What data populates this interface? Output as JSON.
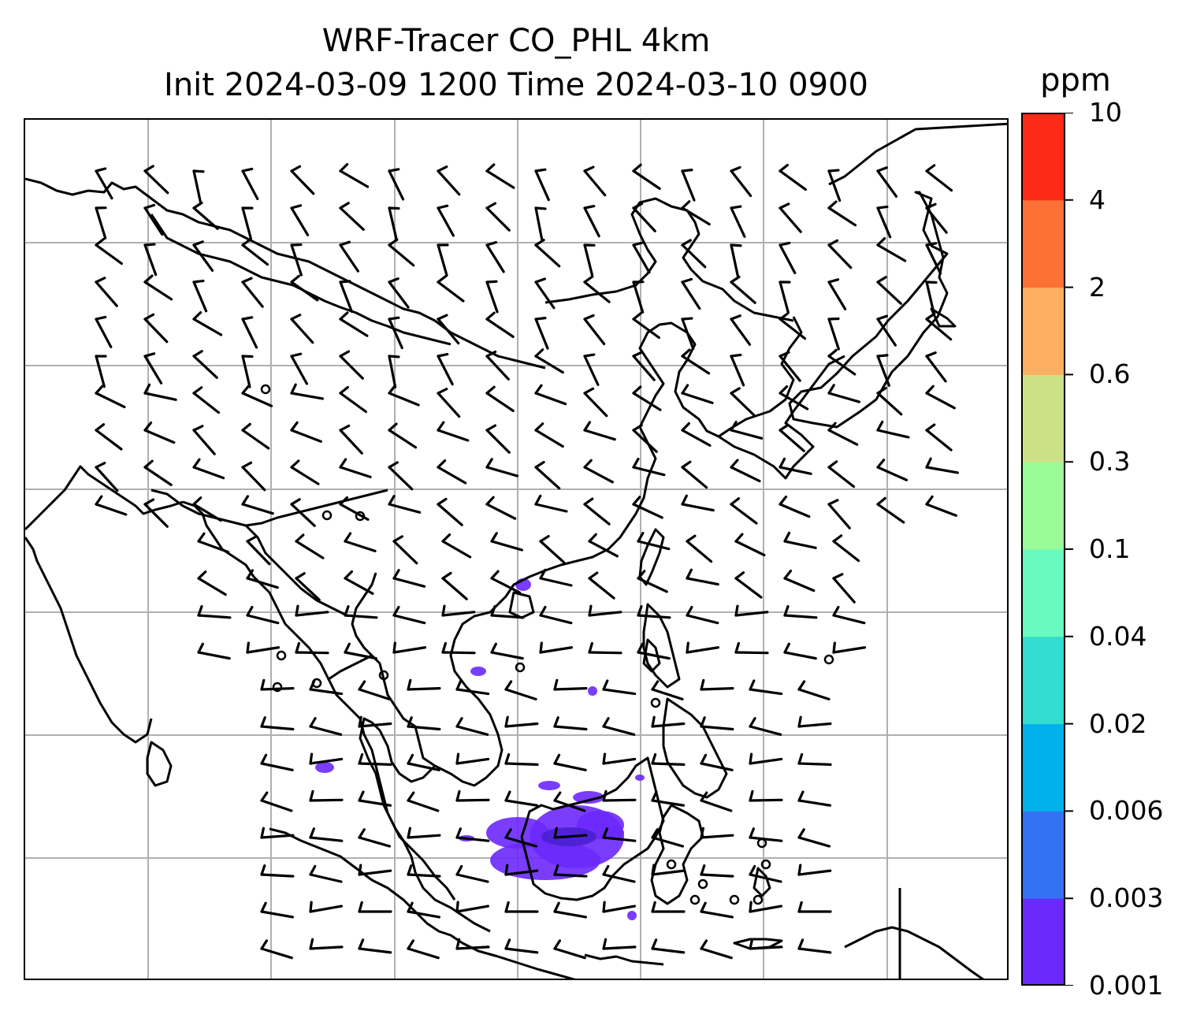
{
  "title": {
    "line1": "WRF-Tracer CO_PHL 4km",
    "line2": "Init 2024-03-09 1200 Time 2024-03-10 0900"
  },
  "colorbar": {
    "unit": "ppm",
    "levels": [
      "0.001",
      "0.003",
      "0.006",
      "0.02",
      "0.04",
      "0.1",
      "0.3",
      "0.6",
      "2",
      "4",
      "10"
    ],
    "colors": [
      "#6a28fb",
      "#3372f2",
      "#00b1ec",
      "#32dccf",
      "#68fbbf",
      "#9bfb97",
      "#cce186",
      "#fdb061",
      "#fd7137",
      "#fd2a18"
    ]
  },
  "map": {
    "gridline_color": "#b0b0b0",
    "coastline_color": "#000000",
    "barb_color": "#000000",
    "plume_color": "#6a28fb",
    "plume_dark_color": "#4a1fd0"
  }
}
